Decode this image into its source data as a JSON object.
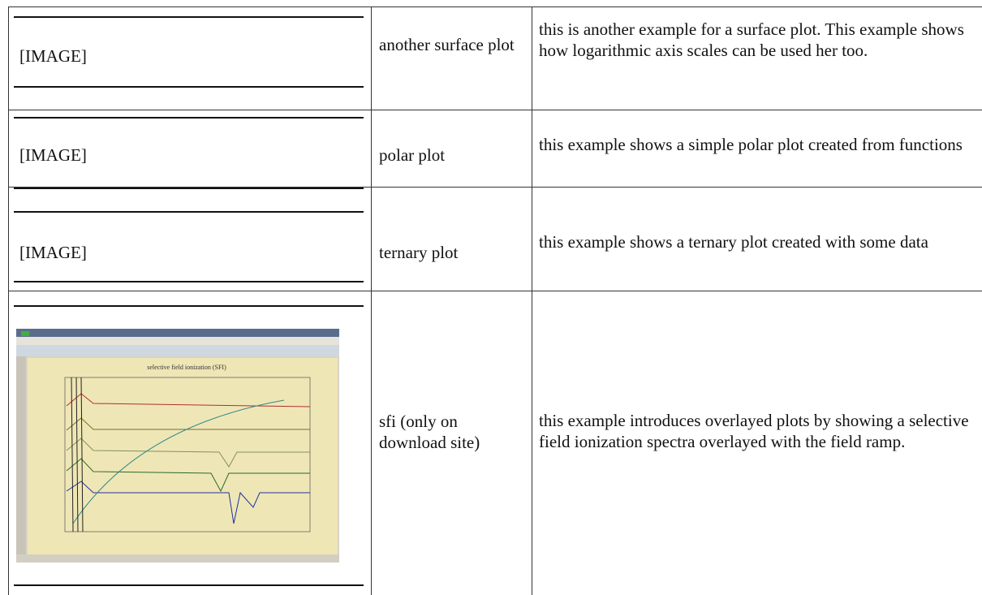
{
  "table": {
    "rows": [
      {
        "image": "[IMAGE]",
        "name": "another surface plot",
        "description": "this is another example for a surface plot. This example shows how logarithmic axis scales can be used her too."
      },
      {
        "image": "[IMAGE]",
        "name": "polar plot",
        "description": "this example shows a simple polar plot created from functions"
      },
      {
        "image": "[IMAGE]",
        "name": "ternary plot",
        "description": "this example shows a ternary plot created with some data"
      },
      {
        "image_title": "selective field ionization (SFI)",
        "name": "sfi (only on download site)",
        "description": "this example introduces overlayed plots by showing a selective field ionization spectra overlayed with the field ramp."
      }
    ]
  }
}
